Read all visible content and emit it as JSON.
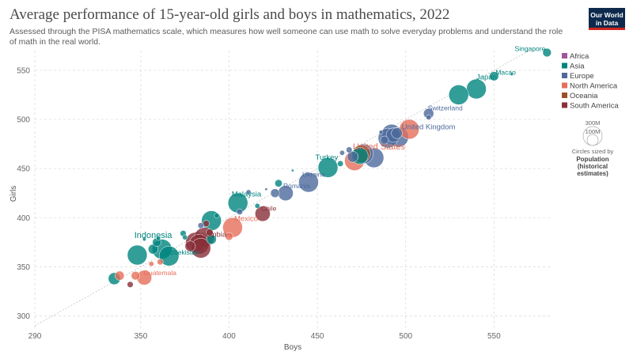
{
  "title": "Average performance of 15-year-old girls and boys in mathematics, 2022",
  "subtitle": "Assessed through the PISA mathematics scale, which measures how well someone can use math to solve everyday problems and understand the role of math in the real world.",
  "logo": {
    "line1": "Our World",
    "line2": "in Data"
  },
  "colors": {
    "Africa": "#a2559c",
    "Asia": "#00847e",
    "Europe": "#4c6a9c",
    "North America": "#e56e5a",
    "Oceania": "#9a5129",
    "South America": "#883039"
  },
  "size_legend": {
    "large": "300M",
    "small": "100M",
    "caption": "Circles sized by",
    "bold_1": "Population",
    "bold_2": "(historical",
    "bold_3": "estimates)"
  },
  "chart_data": {
    "type": "scatter",
    "xlabel": "Boys",
    "ylabel": "Girls",
    "xlim": [
      290,
      583
    ],
    "ylim": [
      290,
      570
    ],
    "xticks": [
      290,
      350,
      400,
      450,
      500,
      550
    ],
    "yticks": [
      300,
      350,
      400,
      450,
      500,
      550
    ],
    "grid": true,
    "legend_position": "right",
    "legend": [
      "Africa",
      "Asia",
      "Europe",
      "North America",
      "Oceania",
      "South America"
    ],
    "points": [
      {
        "x": 580,
        "y": 568,
        "pop": 6,
        "region": "Asia",
        "label": "Singapore"
      },
      {
        "x": 550,
        "y": 544,
        "pop": 7,
        "region": "Asia",
        "label": "Macao"
      },
      {
        "x": 560,
        "y": 546,
        "pop": 0.7,
        "region": "Asia"
      },
      {
        "x": 540,
        "y": 531,
        "pop": 124,
        "region": "Asia",
        "label": "Japan"
      },
      {
        "x": 530,
        "y": 525,
        "pop": 51,
        "region": "Asia"
      },
      {
        "x": 513,
        "y": 506,
        "pop": 8.7,
        "region": "Europe",
        "label": "Switzerland"
      },
      {
        "x": 513,
        "y": 502,
        "pop": 2,
        "region": "Europe"
      },
      {
        "x": 496,
        "y": 482,
        "pop": 67,
        "region": "Europe",
        "label": "United Kingdom"
      },
      {
        "x": 493,
        "y": 484,
        "pop": 17,
        "region": "Europe"
      },
      {
        "x": 492,
        "y": 485,
        "pop": 83,
        "region": "Europe"
      },
      {
        "x": 495,
        "y": 486,
        "pop": 10,
        "region": "Europe"
      },
      {
        "x": 490,
        "y": 481,
        "pop": 38,
        "region": "Europe"
      },
      {
        "x": 502,
        "y": 490,
        "pop": 38,
        "region": "North America"
      },
      {
        "x": 486,
        "y": 487,
        "pop": 1.3,
        "region": "Europe"
      },
      {
        "x": 488,
        "y": 479,
        "pop": 5.4,
        "region": "Europe"
      },
      {
        "x": 482,
        "y": 461,
        "pop": 60,
        "region": "Europe"
      },
      {
        "x": 471,
        "y": 458,
        "pop": 338,
        "region": "North America",
        "label": "United States"
      },
      {
        "x": 475,
        "y": 465,
        "pop": 26,
        "region": "Oceania"
      },
      {
        "x": 474,
        "y": 463,
        "pop": 23,
        "region": "Asia"
      },
      {
        "x": 476,
        "y": 465,
        "pop": 46,
        "region": "Europe"
      },
      {
        "x": 470,
        "y": 462,
        "pop": 10,
        "region": "Europe"
      },
      {
        "x": 464,
        "y": 466,
        "pop": 2,
        "region": "Europe"
      },
      {
        "x": 468,
        "y": 469,
        "pop": 3,
        "region": "Europe"
      },
      {
        "x": 463,
        "y": 455,
        "pop": 2.8,
        "region": "Asia"
      },
      {
        "x": 456,
        "y": 451,
        "pop": 85,
        "region": "Asia",
        "label": "Turkey"
      },
      {
        "x": 445,
        "y": 436,
        "pop": 39,
        "region": "Europe",
        "label": "Ukraine"
      },
      {
        "x": 436,
        "y": 448,
        "pop": 0.5,
        "region": "Asia"
      },
      {
        "x": 432,
        "y": 425,
        "pop": 19,
        "region": "Europe",
        "label": "Romania"
      },
      {
        "x": 428,
        "y": 435,
        "pop": 4.5,
        "region": "Asia"
      },
      {
        "x": 426,
        "y": 425,
        "pop": 6.4,
        "region": "Europe"
      },
      {
        "x": 421,
        "y": 429,
        "pop": 0.6,
        "region": "Europe"
      },
      {
        "x": 411,
        "y": 426,
        "pop": 2,
        "region": "Europe"
      },
      {
        "x": 405,
        "y": 415,
        "pop": 34,
        "region": "Asia",
        "label": "Malaysia"
      },
      {
        "x": 406,
        "y": 406,
        "pop": 3,
        "region": "Europe"
      },
      {
        "x": 416,
        "y": 412,
        "pop": 2,
        "region": "Asia"
      },
      {
        "x": 419,
        "y": 404,
        "pop": 19,
        "region": "South America",
        "label": "Chile"
      },
      {
        "x": 390,
        "y": 397,
        "pop": 71,
        "region": "Asia"
      },
      {
        "x": 387,
        "y": 394,
        "pop": 3.4,
        "region": "South America"
      },
      {
        "x": 384,
        "y": 392,
        "pop": 2.8,
        "region": "Europe"
      },
      {
        "x": 393,
        "y": 402,
        "pop": 2,
        "region": "Asia"
      },
      {
        "x": 402,
        "y": 390,
        "pop": 128,
        "region": "North America",
        "label": "Mexico"
      },
      {
        "x": 400,
        "y": 381,
        "pop": 5,
        "region": "North America"
      },
      {
        "x": 389,
        "y": 385,
        "pop": 4,
        "region": "South America"
      },
      {
        "x": 390,
        "y": 378,
        "pop": 8,
        "region": "Asia"
      },
      {
        "x": 386,
        "y": 380,
        "pop": 46,
        "region": "South America"
      },
      {
        "x": 381,
        "y": 375,
        "pop": 52,
        "region": "South America",
        "label": "Colombia"
      },
      {
        "x": 383,
        "y": 373,
        "pop": 45,
        "region": "South America"
      },
      {
        "x": 378,
        "y": 371,
        "pop": 9,
        "region": "South America"
      },
      {
        "x": 384,
        "y": 369,
        "pop": 34,
        "region": "South America"
      },
      {
        "x": 374,
        "y": 384,
        "pop": 3,
        "region": "Asia"
      },
      {
        "x": 375,
        "y": 380,
        "pop": 2,
        "region": "Asia"
      },
      {
        "x": 362,
        "y": 368,
        "pop": 276,
        "region": "Asia",
        "label": "Indonesia"
      },
      {
        "x": 357,
        "y": 368,
        "pop": 8,
        "region": "Asia"
      },
      {
        "x": 366,
        "y": 361,
        "pop": 35,
        "region": "Asia",
        "label": "Uzbekistan"
      },
      {
        "x": 348,
        "y": 362,
        "pop": 115,
        "region": "Asia"
      },
      {
        "x": 359,
        "y": 375,
        "pop": 6,
        "region": "Asia"
      },
      {
        "x": 352,
        "y": 378,
        "pop": 1,
        "region": "Asia"
      },
      {
        "x": 360,
        "y": 379,
        "pop": 1.5,
        "region": "Asia"
      },
      {
        "x": 361,
        "y": 355,
        "pop": 3,
        "region": "North America"
      },
      {
        "x": 356,
        "y": 353,
        "pop": 2,
        "region": "North America"
      },
      {
        "x": 352,
        "y": 339,
        "pop": 18,
        "region": "North America",
        "label": "Guatemala"
      },
      {
        "x": 347,
        "y": 341,
        "pop": 6,
        "region": "North America"
      },
      {
        "x": 338,
        "y": 341,
        "pop": 7,
        "region": "North America"
      },
      {
        "x": 335,
        "y": 338,
        "pop": 12,
        "region": "Asia"
      },
      {
        "x": 344,
        "y": 332,
        "pop": 3,
        "region": "South America"
      }
    ]
  }
}
